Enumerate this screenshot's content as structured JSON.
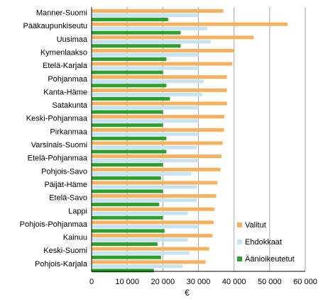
{
  "chart_data": {
    "type": "bar",
    "orientation": "horizontal",
    "categories": [
      "Manner-Suomi",
      "Pääkaupunkiseutu",
      "Uusimaa",
      "Kymenlaakso",
      "Etelä-Karjala",
      "Pohjanmaa",
      "Kanta-Häme",
      "Satakunta",
      "Keski-Pohjanmaa",
      "Pirkanmaa",
      "Varsinais-Suomi",
      "Etelä-Pohjanmaa",
      "Pohjois-Savo",
      "Päijät-Häme",
      "Etelä-Savo",
      "Lappi",
      "Pohjois-Pohjanmaa",
      "Kainuu",
      "Keski-Suomi",
      "Pohjois-Karjala"
    ],
    "series": [
      {
        "name": "Valitut",
        "color": "#f7b05b",
        "values": [
          37000,
          55000,
          45500,
          40000,
          39500,
          38000,
          38000,
          38000,
          37300,
          37200,
          36800,
          36500,
          36200,
          35300,
          35000,
          34500,
          34300,
          33900,
          33000,
          32000
        ]
      },
      {
        "name": "Ehdokkaat",
        "color": "#c5e3f3",
        "values": [
          30000,
          32500,
          33500,
          30000,
          30000,
          31500,
          31000,
          30000,
          30000,
          30000,
          29500,
          30000,
          28000,
          29500,
          29500,
          27000,
          30000,
          27000,
          27500,
          25500
        ]
      },
      {
        "name": "Äänioikeutetut",
        "color": "#2ca02c",
        "values": [
          21500,
          25000,
          25000,
          21000,
          20000,
          21000,
          22000,
          20000,
          20000,
          21000,
          21000,
          20000,
          19500,
          20000,
          19000,
          20000,
          20500,
          18500,
          19500,
          17500
        ]
      }
    ],
    "xlabel": "€",
    "xlim": [
      0,
      60000
    ],
    "xticks": [
      0,
      10000,
      20000,
      30000,
      40000,
      50000,
      60000
    ],
    "xtick_labels": [
      "0",
      "10 000",
      "20 000",
      "30 000",
      "40 000",
      "50 000",
      "60 000"
    ],
    "grid": "vertical",
    "legend": "bottom-right"
  }
}
